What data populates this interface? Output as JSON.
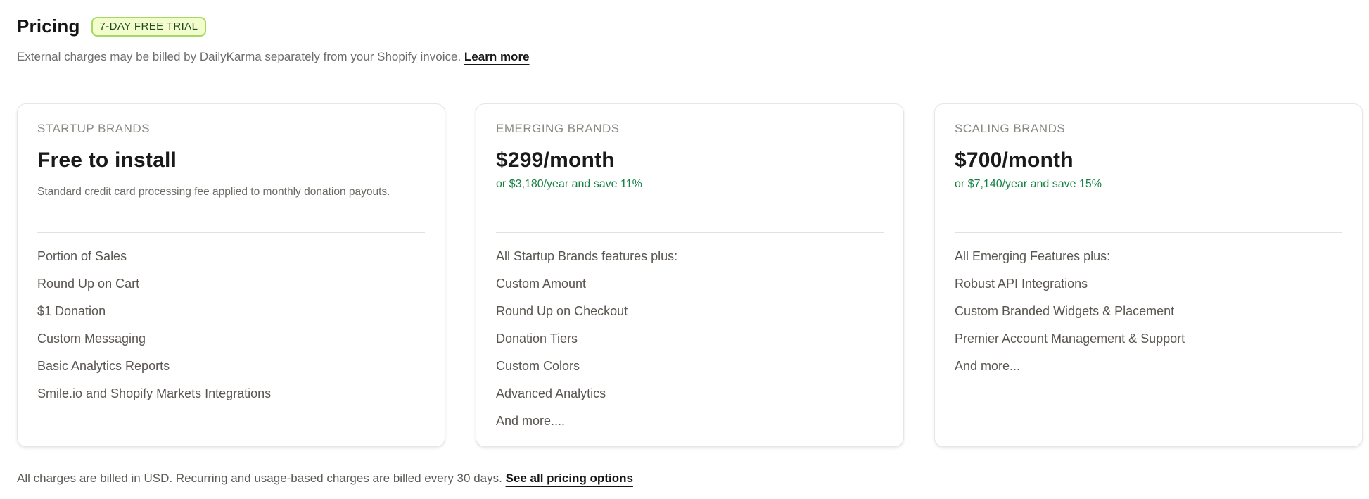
{
  "header": {
    "title": "Pricing",
    "badge": "7-DAY FREE TRIAL",
    "subtitle": "External charges may be billed by DailyKarma separately from your Shopify invoice.",
    "learn_more_label": "Learn more"
  },
  "plans": [
    {
      "label": "STARTUP BRANDS",
      "price": "Free to install",
      "price_note": "",
      "description": "Standard credit card processing fee applied to monthly donation payouts.",
      "features": [
        "Portion of Sales",
        "Round Up on Cart",
        "$1 Donation",
        "Custom Messaging",
        "Basic Analytics Reports",
        "Smile.io and Shopify Markets Integrations"
      ]
    },
    {
      "label": "EMERGING BRANDS",
      "price": "$299/month",
      "price_note": "or $3,180/year and save 11%",
      "description": "",
      "features": [
        "All Startup Brands features plus:",
        "Custom Amount",
        "Round Up on Checkout",
        "Donation Tiers",
        "Custom Colors",
        "Advanced Analytics",
        "And more...."
      ]
    },
    {
      "label": "SCALING BRANDS",
      "price": "$700/month",
      "price_note": "or $7,140/year and save 15%",
      "description": "",
      "features": [
        "All Emerging Features plus:",
        "Robust API Integrations",
        "Custom Branded Widgets & Placement",
        "Premier Account Management & Support",
        "And more..."
      ]
    }
  ],
  "footer": {
    "text": "All charges are billed in USD. Recurring and usage-based charges are billed every 30 days.",
    "link_label": "See all pricing options"
  },
  "colors": {
    "accent_green": "#158242",
    "badge_bg": "#f3fccd",
    "badge_border": "#a5d961",
    "badge_text": "#1d4a21"
  }
}
